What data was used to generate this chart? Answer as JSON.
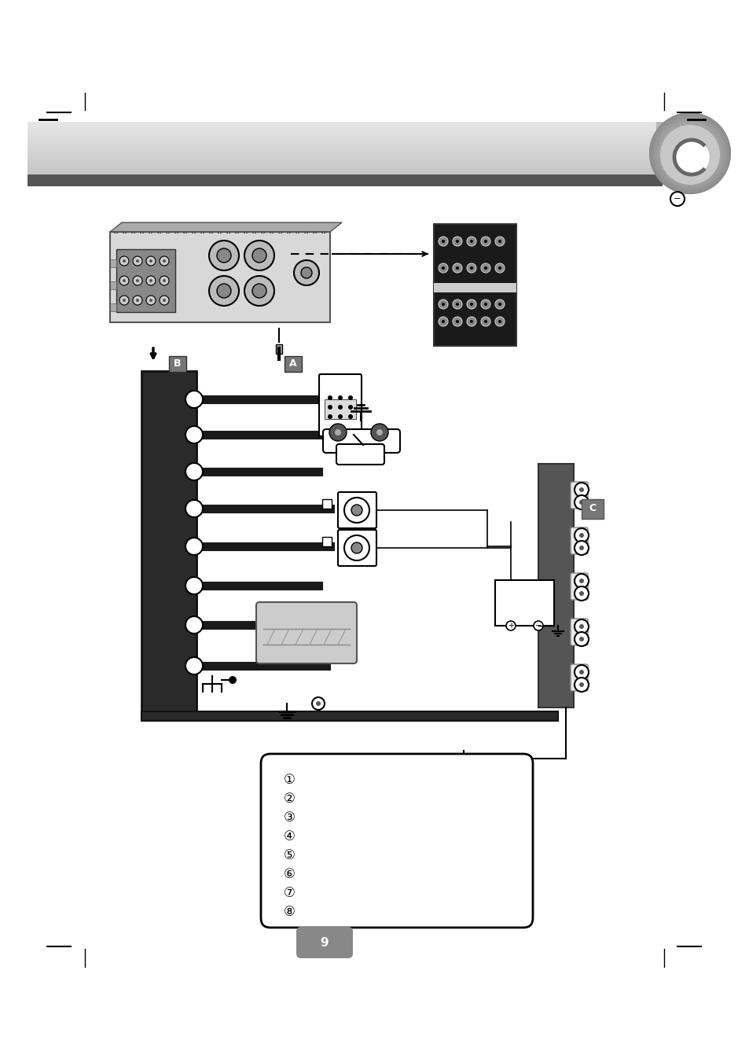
{
  "bg_color": "#ffffff",
  "fig_width": 9.54,
  "fig_height": 13.51,
  "dpi": 100,
  "label_A": "A",
  "label_B": "B",
  "label_C": "C",
  "circled_numbers": [
    "①",
    "②",
    "③",
    "④",
    "⑤",
    "⑥",
    "⑦",
    "⑧"
  ]
}
